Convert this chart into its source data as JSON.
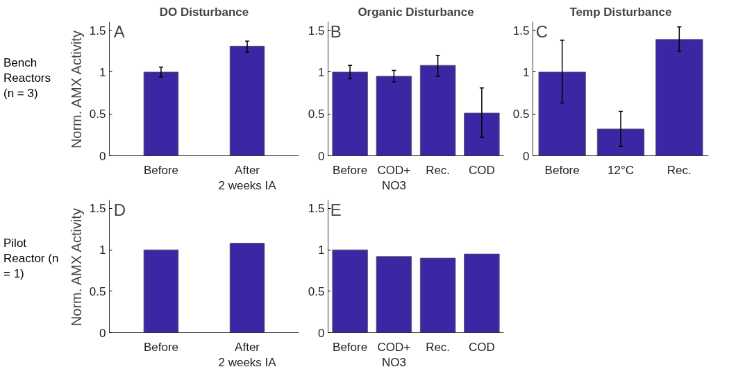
{
  "chart_data": [
    {
      "type": "bar",
      "title": "DO Disturbance",
      "ylabel": "Norm. AMX Activity",
      "annotations": [
        "A",
        "Bench Reactors (n = 3)"
      ],
      "categories": [
        "Before",
        "After\n2 weeks IA"
      ],
      "values": [
        1.0,
        1.31
      ],
      "errors": [
        [
          0.94,
          1.06
        ],
        [
          1.24,
          1.37
        ]
      ],
      "color": "#3b27a3",
      "ylim": [
        0,
        1.6
      ],
      "yticks": [
        0,
        0.5,
        1,
        1.5
      ],
      "grid": false
    },
    {
      "type": "bar",
      "title": "Organic Disturbance",
      "annotations": [
        "B"
      ],
      "categories": [
        "Before",
        "COD+\nNO3",
        "Rec.",
        "COD"
      ],
      "values": [
        1.0,
        0.95,
        1.08,
        0.51
      ],
      "errors": [
        [
          0.92,
          1.08
        ],
        [
          0.88,
          1.02
        ],
        [
          0.95,
          1.2
        ],
        [
          0.22,
          0.81
        ]
      ],
      "color": "#3b27a3",
      "ylim": [
        0,
        1.6
      ],
      "yticks": [
        0,
        0.5,
        1,
        1.5
      ],
      "grid": false
    },
    {
      "type": "bar",
      "title": "Temp Disturbance",
      "annotations": [
        "C"
      ],
      "categories": [
        "Before",
        "12°C",
        "Rec."
      ],
      "values": [
        1.0,
        0.32,
        1.39
      ],
      "errors": [
        [
          0.63,
          1.38
        ],
        [
          0.11,
          0.53
        ],
        [
          1.25,
          1.54
        ]
      ],
      "color": "#3b27a3",
      "ylim": [
        0,
        1.6
      ],
      "yticks": [
        0,
        0.5,
        1,
        1.5
      ],
      "grid": false
    },
    {
      "type": "bar",
      "ylabel": "Norm. AMX Activity",
      "annotations": [
        "D",
        "Pilot Reactor (n = 1)"
      ],
      "categories": [
        "Before",
        "After\n2 weeks IA"
      ],
      "values": [
        1.0,
        1.08
      ],
      "color": "#3b27a3",
      "ylim": [
        0,
        1.6
      ],
      "yticks": [
        0,
        0.5,
        1,
        1.5
      ],
      "grid": false
    },
    {
      "type": "bar",
      "annotations": [
        "E"
      ],
      "categories": [
        "Before",
        "COD+\nNO3",
        "Rec.",
        "COD"
      ],
      "values": [
        1.0,
        0.92,
        0.9,
        0.95
      ],
      "color": "#3b27a3",
      "ylim": [
        0,
        1.6
      ],
      "yticks": [
        0,
        0.5,
        1,
        1.5
      ],
      "grid": false
    }
  ]
}
